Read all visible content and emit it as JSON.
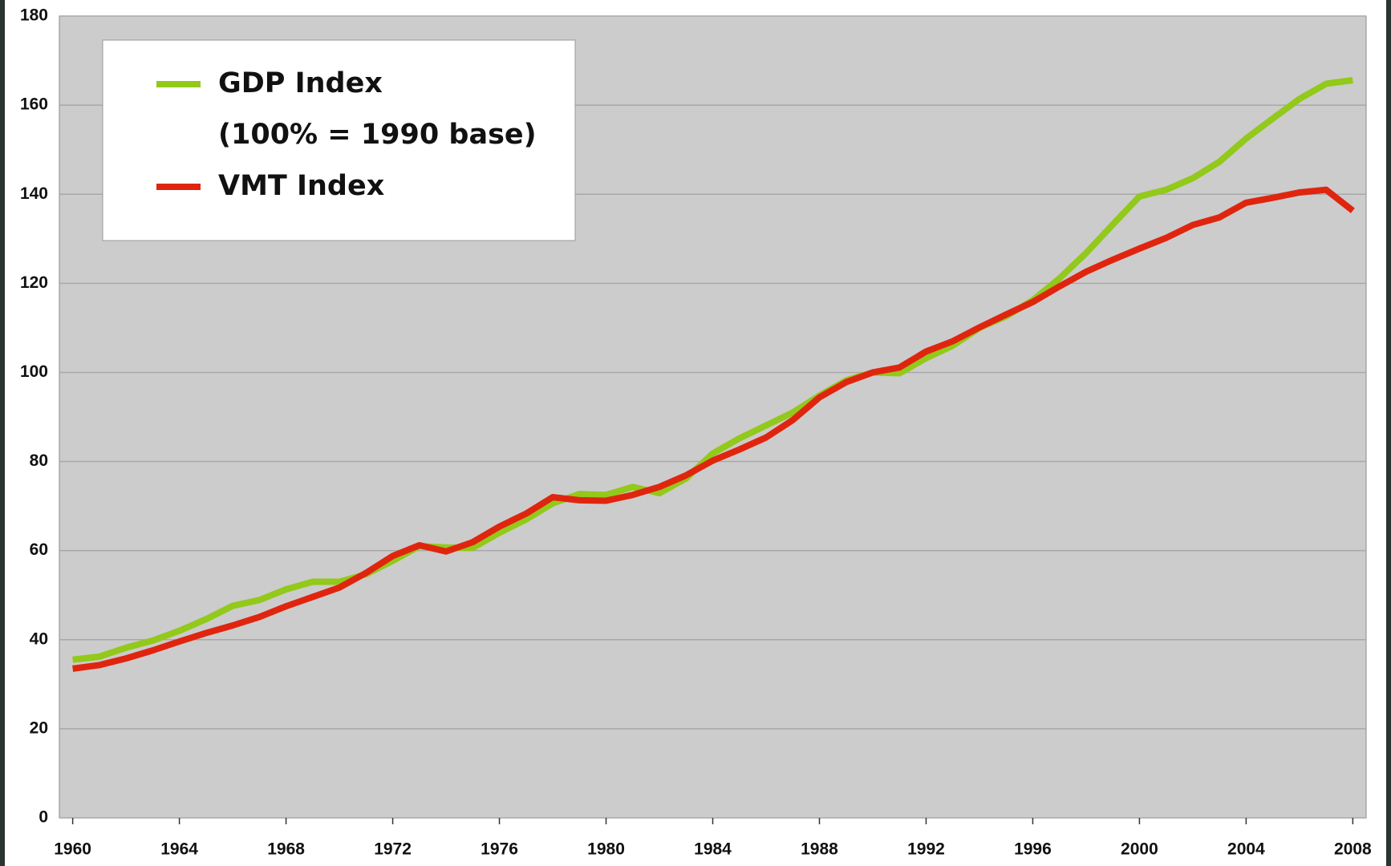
{
  "chart_data": {
    "type": "line",
    "legend_note": "(100% = 1990 base)",
    "x": [
      1960,
      1961,
      1962,
      1963,
      1964,
      1965,
      1966,
      1967,
      1968,
      1969,
      1970,
      1971,
      1972,
      1973,
      1974,
      1975,
      1976,
      1977,
      1978,
      1979,
      1980,
      1981,
      1982,
      1983,
      1984,
      1985,
      1986,
      1987,
      1988,
      1989,
      1990,
      1991,
      1992,
      1993,
      1994,
      1995,
      1996,
      1997,
      1998,
      1999,
      2000,
      2001,
      2002,
      2003,
      2004,
      2005,
      2006,
      2007,
      2008
    ],
    "series": [
      {
        "name": "GDP Index",
        "color": "#92c91a",
        "values": [
          35.5,
          36.2,
          38.2,
          39.8,
          42,
          44.6,
          47.6,
          48.9,
          51.3,
          53.0,
          53.0,
          54.7,
          57.7,
          61.0,
          60.7,
          60.6,
          64,
          67,
          70.6,
          72.7,
          72.5,
          74.3,
          72.9,
          76.2,
          81.8,
          85.2,
          88.1,
          91,
          94.8,
          98.2,
          100,
          99.8,
          103.2,
          106,
          110,
          112.6,
          116.2,
          121.1,
          126.8,
          133.2,
          139.5,
          141.0,
          143.6,
          147.3,
          152.5,
          157,
          161.4,
          164.8,
          165.6
        ]
      },
      {
        "name": "VMT Index",
        "color": "#e0250f",
        "values": [
          33.5,
          34.3,
          35.8,
          37.6,
          39.6,
          41.5,
          43.2,
          45.1,
          47.5,
          49.6,
          51.7,
          55,
          58.8,
          61.2,
          59.8,
          61.9,
          65.4,
          68.3,
          72,
          71.3,
          71.2,
          72.5,
          74.3,
          76.9,
          80.2,
          82.7,
          85.4,
          89.3,
          94.4,
          97.8,
          100,
          101.1,
          104.7,
          107,
          110.1,
          113,
          115.8,
          119.3,
          122.6,
          125.3,
          127.8,
          130.2,
          133.1,
          134.8,
          138.1,
          139.2,
          140.4,
          141,
          136.3
        ]
      }
    ],
    "xlim": [
      1959.5,
      2008.5
    ],
    "xticks": [
      1960,
      1964,
      1968,
      1972,
      1976,
      1980,
      1984,
      1988,
      1992,
      1996,
      2000,
      2004,
      2008
    ],
    "ylim": [
      0,
      180
    ],
    "yticks": [
      0,
      20,
      40,
      60,
      80,
      100,
      120,
      140,
      160,
      180
    ],
    "grid": true,
    "plot_background": "#cccccc"
  }
}
